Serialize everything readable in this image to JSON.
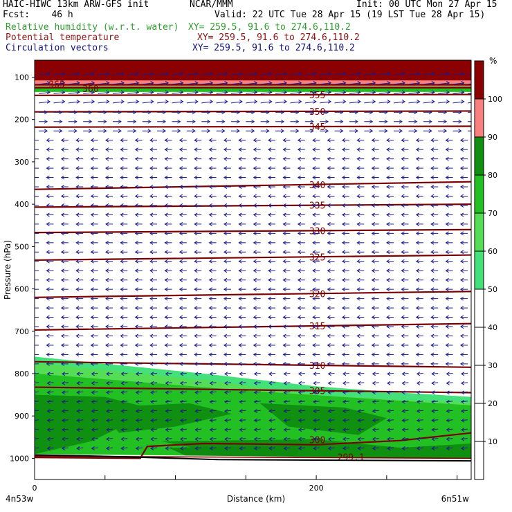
{
  "header": {
    "line1_left": "HAIC-HIWC 13km ARW-GFS init",
    "line1_mid": "NCAR/MMM",
    "line1_right": "Init: 00 UTC Mon 27 Apr 15",
    "line2_left": "Fcst:    46 h",
    "line2_right": "Valid: 22 UTC Tue 28 Apr 15 (19 LST Tue 28 Apr 15)",
    "fields": [
      {
        "label": "Relative humidity (w.r.t. water)",
        "xy": "XY= 259.5, 91.6 to 274.6,110.2",
        "color": "#2e9e2e"
      },
      {
        "label": "Potential temperature",
        "xy": "XY= 259.5, 91.6 to 274.6,110.2",
        "color": "#8b1010"
      },
      {
        "label": "Circulation vectors",
        "xy": "XY= 259.5, 91.6 to 274.6,110.2",
        "color": "#10107a"
      }
    ]
  },
  "chart_data": {
    "type": "heatmap",
    "xlabel": "Distance (km)",
    "ylabel": "Pressure (hPa)",
    "xlim": [
      0,
      310
    ],
    "ylim": [
      1050,
      60
    ],
    "x_ticks": [
      0,
      200
    ],
    "y_ticks": [
      100,
      200,
      300,
      400,
      500,
      600,
      700,
      800,
      900,
      1000
    ],
    "x_end_labels": [
      "4n53w",
      "6n51w"
    ],
    "colorbar": {
      "unit": "%",
      "levels": [
        10,
        20,
        30,
        40,
        50,
        60,
        70,
        80,
        90,
        100
      ],
      "colors": [
        "#ffffff",
        "#ffffff",
        "#ffffff",
        "#ffffff",
        "#ffffff",
        "#44e07a",
        "#55dd55",
        "#22c022",
        "#109010",
        "#fa8080",
        "#8b0000"
      ]
    },
    "theta_contours": [
      {
        "label": "365",
        "pressures": [
          118,
          118
        ]
      },
      {
        "label": "360",
        "pressures": [
          125,
          125
        ]
      },
      {
        "label": "355",
        "pressures": [
          143,
          141
        ]
      },
      {
        "label": "350",
        "pressures": [
          182,
          180
        ]
      },
      {
        "label": "345",
        "pressures": [
          218,
          216
        ]
      },
      {
        "label": "340",
        "pressures": [
          365,
          347
        ]
      },
      {
        "label": "335",
        "pressures": [
          407,
          400
        ]
      },
      {
        "label": "330",
        "pressures": [
          467,
          460
        ]
      },
      {
        "label": "325",
        "pressures": [
          532,
          520
        ]
      },
      {
        "label": "320",
        "pressures": [
          620,
          606
        ]
      },
      {
        "label": "315",
        "pressures": [
          697,
          682
        ]
      },
      {
        "label": "310",
        "pressures": [
          772,
          785
        ]
      },
      {
        "label": "305",
        "pressures": [
          832,
          845
        ]
      },
      {
        "label": "300",
        "pressures": [
          998,
          940
        ]
      },
      {
        "label": "299.1",
        "pressures": [
          995,
          1000
        ]
      }
    ],
    "wind_regime": [
      {
        "layer": "upper",
        "p_range": [
          90,
          240
        ],
        "direction": "eastward"
      },
      {
        "layer": "lower",
        "p_range": [
          240,
          1000
        ],
        "direction": "westward"
      }
    ]
  }
}
